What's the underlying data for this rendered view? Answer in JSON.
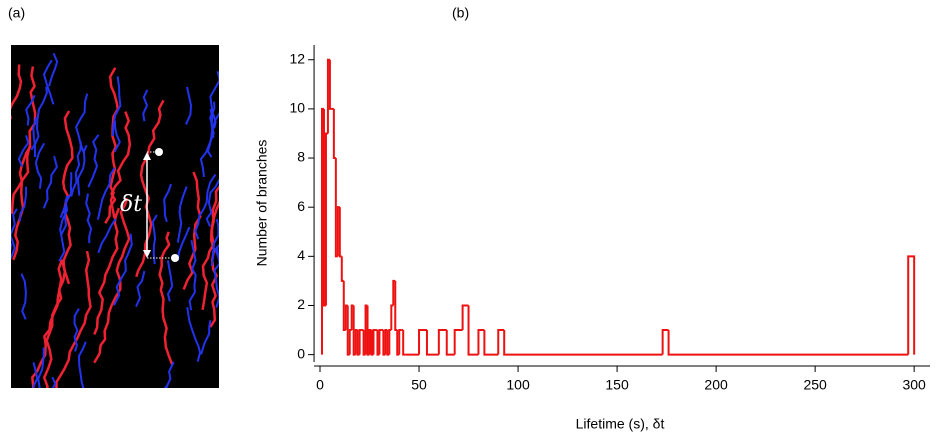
{
  "panel_a": {
    "label": "(a)",
    "annotation": "δt"
  },
  "chart_data": {
    "type": "histogram",
    "panel_label": "(b)",
    "x_label": "Lifetime (s), δt",
    "y_label": "Number of branches",
    "color": "#ee1111",
    "bins": [
      1,
      2,
      3,
      4,
      5,
      6,
      7,
      8,
      9,
      10,
      11,
      12,
      13,
      14,
      15,
      16,
      17,
      18,
      19,
      20,
      21,
      22,
      23,
      24,
      25,
      26,
      27,
      28,
      29,
      30,
      31,
      32,
      33,
      34,
      35,
      36,
      37,
      38,
      39,
      40,
      41,
      42,
      43,
      50,
      54,
      60,
      64,
      68,
      72,
      75,
      80,
      83,
      90,
      93,
      173,
      176,
      297,
      300
    ],
    "values": [
      10,
      2,
      9,
      12,
      10,
      10,
      8,
      4,
      6,
      4,
      3,
      1,
      2,
      0,
      1,
      2,
      0,
      1,
      0,
      1,
      1,
      0,
      2,
      0,
      1,
      0,
      1,
      1,
      0,
      1,
      1,
      0,
      1,
      0,
      1,
      2,
      3,
      1,
      0,
      1,
      1,
      0,
      0,
      1,
      0,
      1,
      0,
      1,
      2,
      0,
      1,
      0,
      1,
      0,
      1,
      0,
      4
    ],
    "xlim": [
      -3,
      308
    ],
    "ylim": [
      -0.3,
      12.6
    ],
    "xticks": [
      0,
      50,
      100,
      150,
      200,
      250,
      300
    ],
    "yticks": [
      0,
      2,
      4,
      6,
      8,
      10,
      12
    ]
  }
}
